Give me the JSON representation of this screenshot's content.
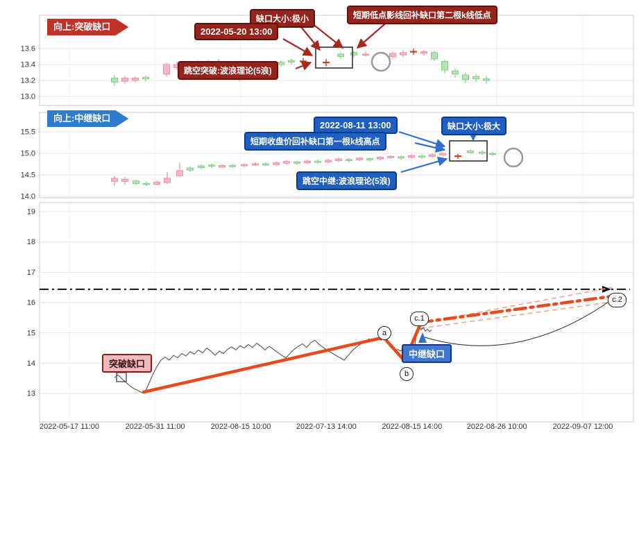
{
  "colors": {
    "up_fill": "#f6b8c4",
    "up_stroke": "#ef8fa0",
    "down_fill": "#b2e6ae",
    "down_stroke": "#85cf85",
    "doji": "#cf3b2b",
    "red_annotation": "#97231d",
    "red_arrow": "#a8281e",
    "blue_annotation": "#1e5fc0",
    "blue_arrow": "#2f6fd0",
    "trend": "#e8491d",
    "fan_dash": "#f2a68c",
    "grid": "#e7e7e7",
    "axis_text": "#333333"
  },
  "chart_data": [
    {
      "type": "candlestick",
      "panel": "top",
      "y_range": [
        12.887,
        14.017
      ],
      "y_ticks": [
        "13.6",
        "13.4",
        "13.2",
        "13.0"
      ],
      "annotations": {
        "direction": "向上:突破缺口",
        "gap_size": "缺口大小:极小",
        "datetime": "2022-05-20 13:00",
        "note": "短期低点影线回补缺口第二根k线低点",
        "theory": "跳空突破:波浪理论(5浪)"
      },
      "candles": [
        [
          165,
          13.18,
          13.27,
          13.13,
          13.23,
          "d"
        ],
        [
          180,
          13.23,
          13.26,
          13.16,
          13.19,
          "u"
        ],
        [
          195,
          13.2,
          13.25,
          13.17,
          13.23,
          "u"
        ],
        [
          210,
          13.22,
          13.26,
          13.19,
          13.24,
          "d"
        ],
        [
          240,
          13.28,
          13.42,
          13.25,
          13.4,
          "u"
        ],
        [
          255,
          13.36,
          13.43,
          13.33,
          13.4,
          "u"
        ],
        [
          270,
          13.4,
          13.43,
          13.34,
          13.37,
          "d"
        ],
        [
          285,
          13.39,
          13.45,
          13.37,
          13.43,
          "d"
        ],
        [
          300,
          13.42,
          13.46,
          13.39,
          13.44,
          "d"
        ],
        [
          315,
          13.44,
          13.47,
          13.39,
          13.41,
          "d"
        ],
        [
          330,
          13.38,
          13.44,
          13.36,
          13.42,
          "u"
        ],
        [
          345,
          13.24,
          13.33,
          13.19,
          13.3,
          "u"
        ],
        [
          360,
          13.3,
          13.36,
          13.27,
          13.34,
          "u"
        ],
        [
          375,
          13.34,
          13.39,
          13.31,
          13.37,
          "d"
        ],
        [
          390,
          13.36,
          13.42,
          13.33,
          13.4,
          "u"
        ],
        [
          405,
          13.4,
          13.45,
          13.37,
          13.43,
          "d"
        ],
        [
          420,
          13.43,
          13.47,
          13.4,
          13.45,
          "d"
        ],
        [
          437,
          13.44,
          13.48,
          13.4,
          13.44,
          "x"
        ],
        [
          470,
          13.42,
          13.47,
          13.38,
          13.43,
          "x"
        ],
        [
          491,
          13.5,
          13.56,
          13.47,
          13.53,
          "d"
        ],
        [
          510,
          13.52,
          13.57,
          13.49,
          13.55,
          "d"
        ],
        [
          527,
          13.53,
          13.56,
          13.5,
          13.52,
          "u"
        ],
        [
          566,
          13.5,
          13.56,
          13.47,
          13.54,
          "u"
        ],
        [
          581,
          13.52,
          13.58,
          13.49,
          13.55,
          "u"
        ],
        [
          596,
          13.55,
          13.6,
          13.52,
          13.57,
          "x"
        ],
        [
          611,
          13.54,
          13.58,
          13.51,
          13.56,
          "u"
        ],
        [
          626,
          13.55,
          13.57,
          13.44,
          13.47,
          "d"
        ],
        [
          641,
          13.44,
          13.46,
          13.29,
          13.33,
          "d"
        ],
        [
          656,
          13.32,
          13.35,
          13.24,
          13.28,
          "d"
        ],
        [
          671,
          13.27,
          13.3,
          13.17,
          13.21,
          "d"
        ],
        [
          686,
          13.22,
          13.28,
          13.18,
          13.25,
          "d"
        ],
        [
          701,
          13.22,
          13.26,
          13.16,
          13.2,
          "d"
        ]
      ]
    },
    {
      "type": "candlestick",
      "panel": "middle",
      "y_range": [
        13.968,
        15.952
      ],
      "y_ticks": [
        "15.5",
        "15.0",
        "14.5",
        "14.0"
      ],
      "annotations": {
        "direction": "向上:中继缺口",
        "gap_size": "缺口大小:极大",
        "datetime": "2022-08-11 13:00",
        "note": "短期收盘价回补缺口第一根k线高点",
        "theory": "跳空中继:波浪理论(5浪)"
      },
      "candles": [
        [
          165,
          14.35,
          14.48,
          14.24,
          14.42,
          "u"
        ],
        [
          180,
          14.35,
          14.45,
          14.27,
          14.4,
          "u"
        ],
        [
          196,
          14.36,
          14.39,
          14.26,
          14.3,
          "d"
        ],
        [
          211,
          14.3,
          14.34,
          14.24,
          14.28,
          "d"
        ],
        [
          226,
          14.28,
          14.37,
          14.25,
          14.33,
          "u"
        ],
        [
          241,
          14.32,
          14.56,
          14.29,
          14.42,
          "u"
        ],
        [
          259,
          14.48,
          14.78,
          14.45,
          14.6,
          "u"
        ],
        [
          274,
          14.61,
          14.7,
          14.57,
          14.66,
          "d"
        ],
        [
          290,
          14.67,
          14.74,
          14.63,
          14.71,
          "d"
        ],
        [
          305,
          14.7,
          14.76,
          14.66,
          14.73,
          "d"
        ],
        [
          320,
          14.68,
          14.75,
          14.65,
          14.72,
          "u"
        ],
        [
          335,
          14.72,
          14.75,
          14.66,
          14.69,
          "d"
        ],
        [
          352,
          14.71,
          14.77,
          14.68,
          14.74,
          "u"
        ],
        [
          368,
          14.73,
          14.79,
          14.7,
          14.76,
          "u"
        ],
        [
          383,
          14.76,
          14.79,
          14.7,
          14.73,
          "d"
        ],
        [
          398,
          14.74,
          14.81,
          14.71,
          14.78,
          "u"
        ],
        [
          413,
          14.77,
          14.84,
          14.74,
          14.81,
          "u"
        ],
        [
          428,
          14.8,
          14.83,
          14.73,
          14.77,
          "d"
        ],
        [
          443,
          14.78,
          14.85,
          14.75,
          14.82,
          "u"
        ],
        [
          458,
          14.82,
          14.85,
          14.75,
          14.79,
          "d"
        ],
        [
          473,
          14.8,
          14.87,
          14.77,
          14.84,
          "u"
        ],
        [
          488,
          14.83,
          14.9,
          14.8,
          14.87,
          "u"
        ],
        [
          503,
          14.86,
          14.89,
          14.79,
          14.83,
          "d"
        ],
        [
          518,
          14.85,
          14.92,
          14.82,
          14.89,
          "u"
        ],
        [
          533,
          14.88,
          14.91,
          14.81,
          14.85,
          "d"
        ],
        [
          548,
          14.87,
          14.94,
          14.84,
          14.91,
          "u"
        ],
        [
          563,
          14.9,
          14.96,
          14.87,
          14.93,
          "u"
        ],
        [
          578,
          14.92,
          14.95,
          14.85,
          14.89,
          "d"
        ],
        [
          593,
          14.91,
          14.98,
          14.88,
          14.95,
          "u"
        ],
        [
          608,
          14.94,
          14.97,
          14.87,
          14.91,
          "d"
        ],
        [
          623,
          14.93,
          15.0,
          14.9,
          14.97,
          "u"
        ],
        [
          638,
          14.96,
          15.03,
          14.93,
          15.0,
          "u"
        ],
        [
          660,
          14.93,
          14.99,
          14.87,
          14.94,
          "x"
        ],
        [
          678,
          15.02,
          15.09,
          14.99,
          15.06,
          "d"
        ],
        [
          695,
          15.03,
          15.07,
          14.96,
          15.0,
          "d"
        ],
        [
          710,
          15.0,
          15.04,
          14.94,
          14.98,
          "d"
        ]
      ]
    },
    {
      "type": "line",
      "panel": "bottom",
      "y_range": [
        12.066,
        19.297
      ],
      "y_ticks": [
        "19",
        "18",
        "17",
        "16",
        "15",
        "14",
        "13"
      ],
      "x_ticks": [
        "2022-05-17 11:00",
        "2022-05-31 11:00",
        "2022-06-15 10:00",
        "2022-07-13 14:00",
        "2022-08-15 14:00",
        "2022-08-26 10:00",
        "2022-09-07 12:00"
      ],
      "labels": {
        "breakout": "突破缺口",
        "continuation": "中继缺口"
      },
      "markers": {
        "a": "a",
        "b": "b",
        "c1": "c.1",
        "c2": "c.2"
      },
      "hline": 16.44,
      "points": [
        [
          165,
          13.52
        ],
        [
          170,
          13.62
        ],
        [
          175,
          13.5
        ],
        [
          181,
          13.38
        ],
        [
          187,
          13.26
        ],
        [
          193,
          13.16
        ],
        [
          199,
          13.1
        ],
        [
          205,
          13.02
        ],
        [
          209,
          13.05
        ],
        [
          214,
          13.3
        ],
        [
          220,
          13.62
        ],
        [
          226,
          13.88
        ],
        [
          232,
          14.1
        ],
        [
          238,
          14.2
        ],
        [
          244,
          14.1
        ],
        [
          250,
          14.26
        ],
        [
          256,
          14.18
        ],
        [
          262,
          14.32
        ],
        [
          268,
          14.24
        ],
        [
          274,
          14.38
        ],
        [
          280,
          14.3
        ],
        [
          286,
          14.44
        ],
        [
          292,
          14.34
        ],
        [
          298,
          14.5
        ],
        [
          304,
          14.4
        ],
        [
          310,
          14.26
        ],
        [
          316,
          14.4
        ],
        [
          322,
          14.32
        ],
        [
          328,
          14.46
        ],
        [
          334,
          14.54
        ],
        [
          340,
          14.44
        ],
        [
          346,
          14.58
        ],
        [
          352,
          14.5
        ],
        [
          358,
          14.62
        ],
        [
          364,
          14.52
        ],
        [
          370,
          14.66
        ],
        [
          376,
          14.56
        ],
        [
          382,
          14.44
        ],
        [
          388,
          14.56
        ],
        [
          394,
          14.46
        ],
        [
          400,
          14.36
        ],
        [
          406,
          14.26
        ],
        [
          412,
          14.18
        ],
        [
          418,
          14.32
        ],
        [
          424,
          14.46
        ],
        [
          430,
          14.56
        ],
        [
          436,
          14.64
        ],
        [
          442,
          14.52
        ],
        [
          448,
          14.68
        ],
        [
          454,
          14.76
        ],
        [
          460,
          14.62
        ],
        [
          466,
          14.52
        ],
        [
          472,
          14.42
        ],
        [
          478,
          14.34
        ],
        [
          484,
          14.26
        ],
        [
          490,
          14.18
        ],
        [
          496,
          14.1
        ],
        [
          502,
          14.26
        ],
        [
          508,
          14.42
        ],
        [
          514,
          14.54
        ],
        [
          520,
          14.64
        ],
        [
          526,
          14.72
        ],
        [
          532,
          14.8
        ],
        [
          538,
          14.72
        ],
        [
          544,
          14.82
        ],
        [
          549,
          14.76
        ],
        [
          553,
          14.84
        ],
        [
          557,
          14.7
        ],
        [
          561,
          14.58
        ],
        [
          565,
          14.48
        ],
        [
          569,
          14.4
        ],
        [
          573,
          14.46
        ],
        [
          577,
          14.4
        ],
        [
          581,
          14.46
        ],
        [
          585,
          14.4
        ],
        [
          589,
          14.48
        ],
        [
          593,
          14.54
        ],
        [
          597,
          14.48
        ],
        [
          601,
          15.08
        ],
        [
          604,
          15.2
        ],
        [
          607,
          15.1
        ],
        [
          610,
          15.18
        ],
        [
          613,
          15.06
        ],
        [
          616,
          15.12
        ],
        [
          619,
          15.04
        ],
        [
          622,
          15.1
        ]
      ],
      "trend_solid": [
        [
          207,
          13.05
        ],
        [
          553,
          14.85
        ],
        [
          583,
          14.08
        ],
        [
          607,
          15.35
        ]
      ],
      "trend_dashdot": [
        [
          607,
          15.35
        ],
        [
          886,
          16.22
        ]
      ],
      "fan_lines": [
        [
          [
            606,
            15.32
          ],
          [
            882,
            16.5
          ]
        ],
        [
          [
            606,
            15.15
          ],
          [
            882,
            16.02
          ]
        ]
      ]
    }
  ]
}
